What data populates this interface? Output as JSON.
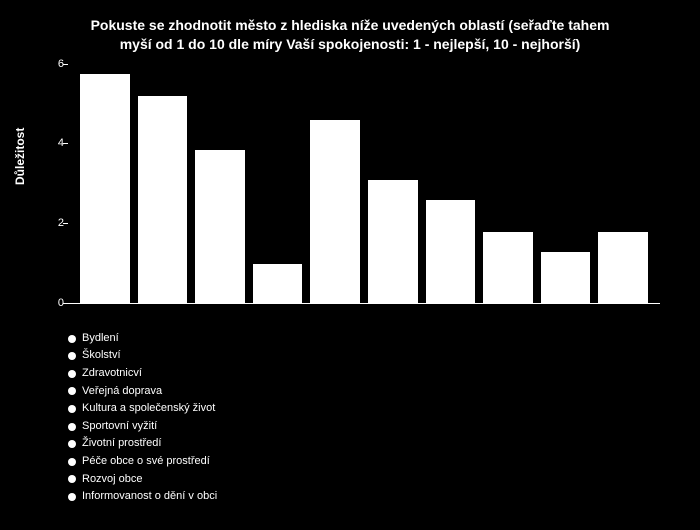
{
  "chart": {
    "type": "bar",
    "title_line1": "Pokuste se zhodnotit město z hlediska níže uvedených oblastí (seřaďte tahem",
    "title_line2": "myší od 1 do 10 dle míry Vaší spokojenosti: 1 - nejlepší, 10 - nejhorší)",
    "title_fontsize": 14,
    "ylabel": "Důležitost",
    "ylabel_fontsize": 12,
    "ylim": [
      0,
      6
    ],
    "yticks": [
      0,
      2,
      4,
      6
    ],
    "background_color": "#000000",
    "bar_color": "#ffffff",
    "text_color": "#ffffff",
    "axis_color": "#ffffff",
    "categories": [
      "Bydlení",
      "Školství",
      "Zdravotnicví",
      "Veřejná doprava",
      "Kultura a společenský život",
      "Sportovní vyžití",
      "Životní prostředí",
      "Péče obce o své prostředí",
      "Rozvoj obce",
      "Informovanost o dění v obci"
    ],
    "values": [
      5.75,
      5.2,
      3.85,
      1.0,
      4.6,
      3.1,
      2.6,
      1.8,
      1.3,
      1.8
    ],
    "legend_marker_color": "#ffffff",
    "legend_fontsize": 11,
    "bar_gap_ratio": 0.15
  }
}
